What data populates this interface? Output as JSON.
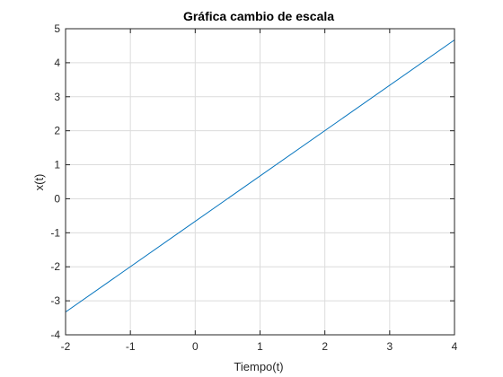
{
  "chart_data": {
    "type": "line",
    "title": "Gráfica cambio de escala",
    "xlabel": "Tiempo(t)",
    "ylabel": "x(t)",
    "xlim": [
      -2,
      4
    ],
    "ylim": [
      -4,
      5
    ],
    "xticks": [
      -2,
      -1,
      0,
      1,
      2,
      3,
      4
    ],
    "yticks": [
      -4,
      -3,
      -2,
      -1,
      0,
      1,
      2,
      3,
      4,
      5
    ],
    "grid": true,
    "series": [
      {
        "color": "#0072bd",
        "x": [
          -2,
          4
        ],
        "y": [
          -3.33,
          4.67
        ]
      }
    ]
  }
}
